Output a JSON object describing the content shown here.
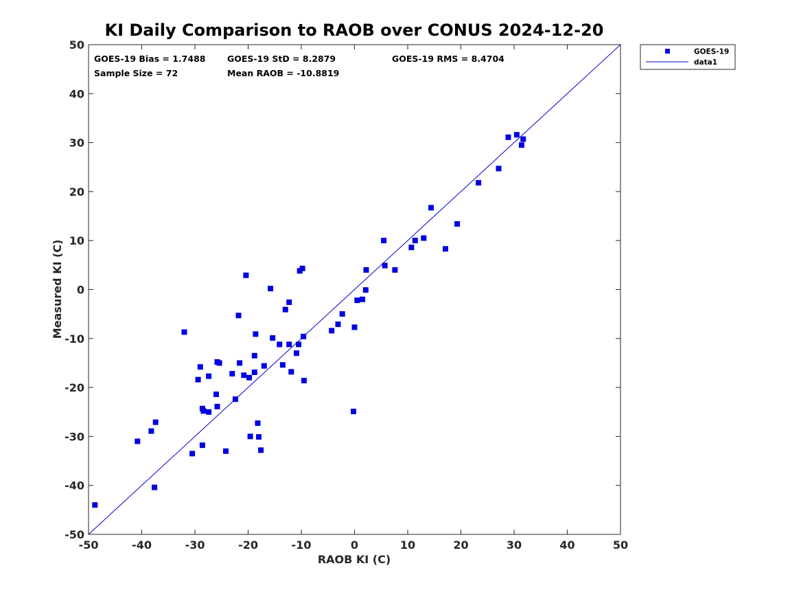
{
  "chart_data": {
    "type": "scatter",
    "title": "KI Daily Comparison to RAOB over CONUS 2024-12-20",
    "xlabel": "RAOB KI (C)",
    "ylabel": "Measured KI (C)",
    "xlim": [
      -50,
      50
    ],
    "ylim": [
      -50,
      50
    ],
    "xticks": [
      "-50",
      "-40",
      "-30",
      "-20",
      "-10",
      "0",
      "10",
      "20",
      "30",
      "40",
      "50"
    ],
    "yticks": [
      "-50",
      "-40",
      "-30",
      "-20",
      "-10",
      "0",
      "10",
      "20",
      "30",
      "40",
      "50"
    ],
    "grid": false,
    "legend": {
      "position": "outside-top-right",
      "entries": [
        "GOES-19",
        "data1"
      ]
    },
    "stats": {
      "bias": "GOES-19 Bias = 1.7488",
      "std": "GOES-19 StD = 8.2879",
      "rms": "GOES-19 RMS = 8.4704",
      "sample": "Sample Size = 72",
      "mean": "Mean RAOB = -10.8819"
    },
    "colors": {
      "marker": "#0000e0",
      "line": "#0000d0",
      "axis": "#262626"
    },
    "reference_line": {
      "name": "data1",
      "x": [
        -50,
        50
      ],
      "y": [
        -50,
        50
      ]
    },
    "series": [
      {
        "name": "GOES-19",
        "points": [
          [
            -48.8,
            -44.0
          ],
          [
            -40.8,
            -31.0
          ],
          [
            -38.2,
            -28.9
          ],
          [
            -37.6,
            -40.4
          ],
          [
            -37.4,
            -27.1
          ],
          [
            -32.0,
            -8.7
          ],
          [
            -30.5,
            -33.5
          ],
          [
            -29.4,
            -18.4
          ],
          [
            -29.0,
            -15.8
          ],
          [
            -28.6,
            -24.3
          ],
          [
            -28.4,
            -24.8
          ],
          [
            -28.6,
            -31.8
          ],
          [
            -27.4,
            -17.7
          ],
          [
            -27.4,
            -25.0
          ],
          [
            -26.0,
            -21.4
          ],
          [
            -25.8,
            -23.9
          ],
          [
            -25.8,
            -14.8
          ],
          [
            -25.4,
            -15.0
          ],
          [
            -24.2,
            -33.0
          ],
          [
            -23.0,
            -17.2
          ],
          [
            -22.4,
            -22.4
          ],
          [
            -21.8,
            -5.3
          ],
          [
            -21.6,
            -15.0
          ],
          [
            -20.8,
            -17.5
          ],
          [
            -20.4,
            2.9
          ],
          [
            -19.8,
            -18.0
          ],
          [
            -19.6,
            -30.0
          ],
          [
            -18.8,
            -16.9
          ],
          [
            -18.8,
            -13.5
          ],
          [
            -18.6,
            -9.1
          ],
          [
            -18.2,
            -27.3
          ],
          [
            -18.0,
            -30.1
          ],
          [
            -17.6,
            -32.8
          ],
          [
            -17.0,
            -15.6
          ],
          [
            -15.8,
            0.2
          ],
          [
            -15.4,
            -9.9
          ],
          [
            -14.1,
            -11.2
          ],
          [
            -13.5,
            -15.4
          ],
          [
            -13.0,
            -4.1
          ],
          [
            -12.3,
            -2.6
          ],
          [
            -12.3,
            -11.2
          ],
          [
            -11.9,
            -16.8
          ],
          [
            -10.9,
            -13.0
          ],
          [
            -10.5,
            -11.2
          ],
          [
            -10.3,
            3.8
          ],
          [
            -9.8,
            4.3
          ],
          [
            -9.6,
            -9.6
          ],
          [
            -9.5,
            -18.6
          ],
          [
            -4.3,
            -8.4
          ],
          [
            -3.1,
            -7.1
          ],
          [
            -2.3,
            -5.0
          ],
          [
            -0.2,
            -24.9
          ],
          [
            0.0,
            -7.7
          ],
          [
            0.5,
            -2.2
          ],
          [
            1.5,
            -2.0
          ],
          [
            2.1,
            -0.1
          ],
          [
            2.2,
            4.0
          ],
          [
            5.5,
            10.0
          ],
          [
            5.7,
            4.9
          ],
          [
            7.6,
            4.0
          ],
          [
            10.7,
            8.6
          ],
          [
            11.4,
            10.0
          ],
          [
            13.0,
            10.5
          ],
          [
            14.4,
            16.7
          ],
          [
            17.1,
            8.3
          ],
          [
            19.3,
            13.4
          ],
          [
            23.3,
            21.8
          ],
          [
            27.1,
            24.7
          ],
          [
            28.9,
            31.1
          ],
          [
            30.5,
            31.6
          ],
          [
            31.4,
            29.5
          ],
          [
            31.7,
            30.7
          ]
        ]
      }
    ]
  }
}
